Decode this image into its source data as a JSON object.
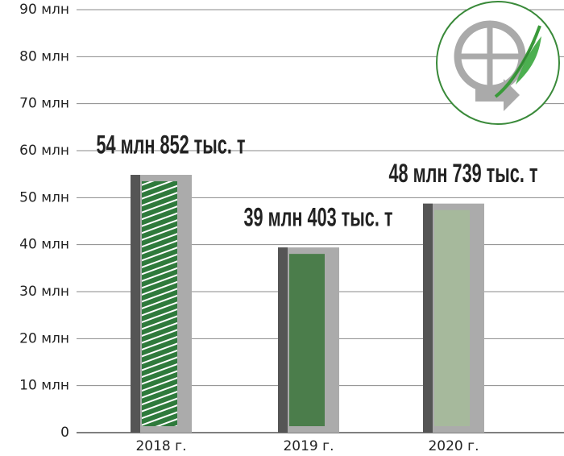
{
  "chart_data": {
    "type": "bar",
    "categories": [
      "2018 г.",
      "2019 г.",
      "2020 г."
    ],
    "values": [
      54.852,
      39.403,
      48.739
    ],
    "value_labels": [
      "54 млн 852 тыс. т",
      "39 млн 403 тыс. т",
      "48 млн 739 тыс. т"
    ],
    "colors": [
      "#2f7a3c",
      "#4b7d4b",
      "#a6b99c"
    ],
    "hatch": [
      true,
      false,
      false
    ],
    "label_color": "#2e7d32",
    "ylim": [
      0,
      90
    ],
    "yticks": [
      0,
      {
        "value": 10,
        "label": "10 млн"
      },
      {
        "value": 20,
        "label": "20 млн"
      },
      {
        "value": 30,
        "label": "30 млн"
      },
      {
        "value": 40,
        "label": "40 млн"
      },
      {
        "value": 50,
        "label": "50 млн"
      },
      {
        "value": 60,
        "label": "60 млн"
      },
      {
        "value": 70,
        "label": "70 млн"
      },
      {
        "value": 80,
        "label": "80 млн"
      },
      {
        "value": 90,
        "label": "90 млн"
      }
    ],
    "grid": true
  }
}
